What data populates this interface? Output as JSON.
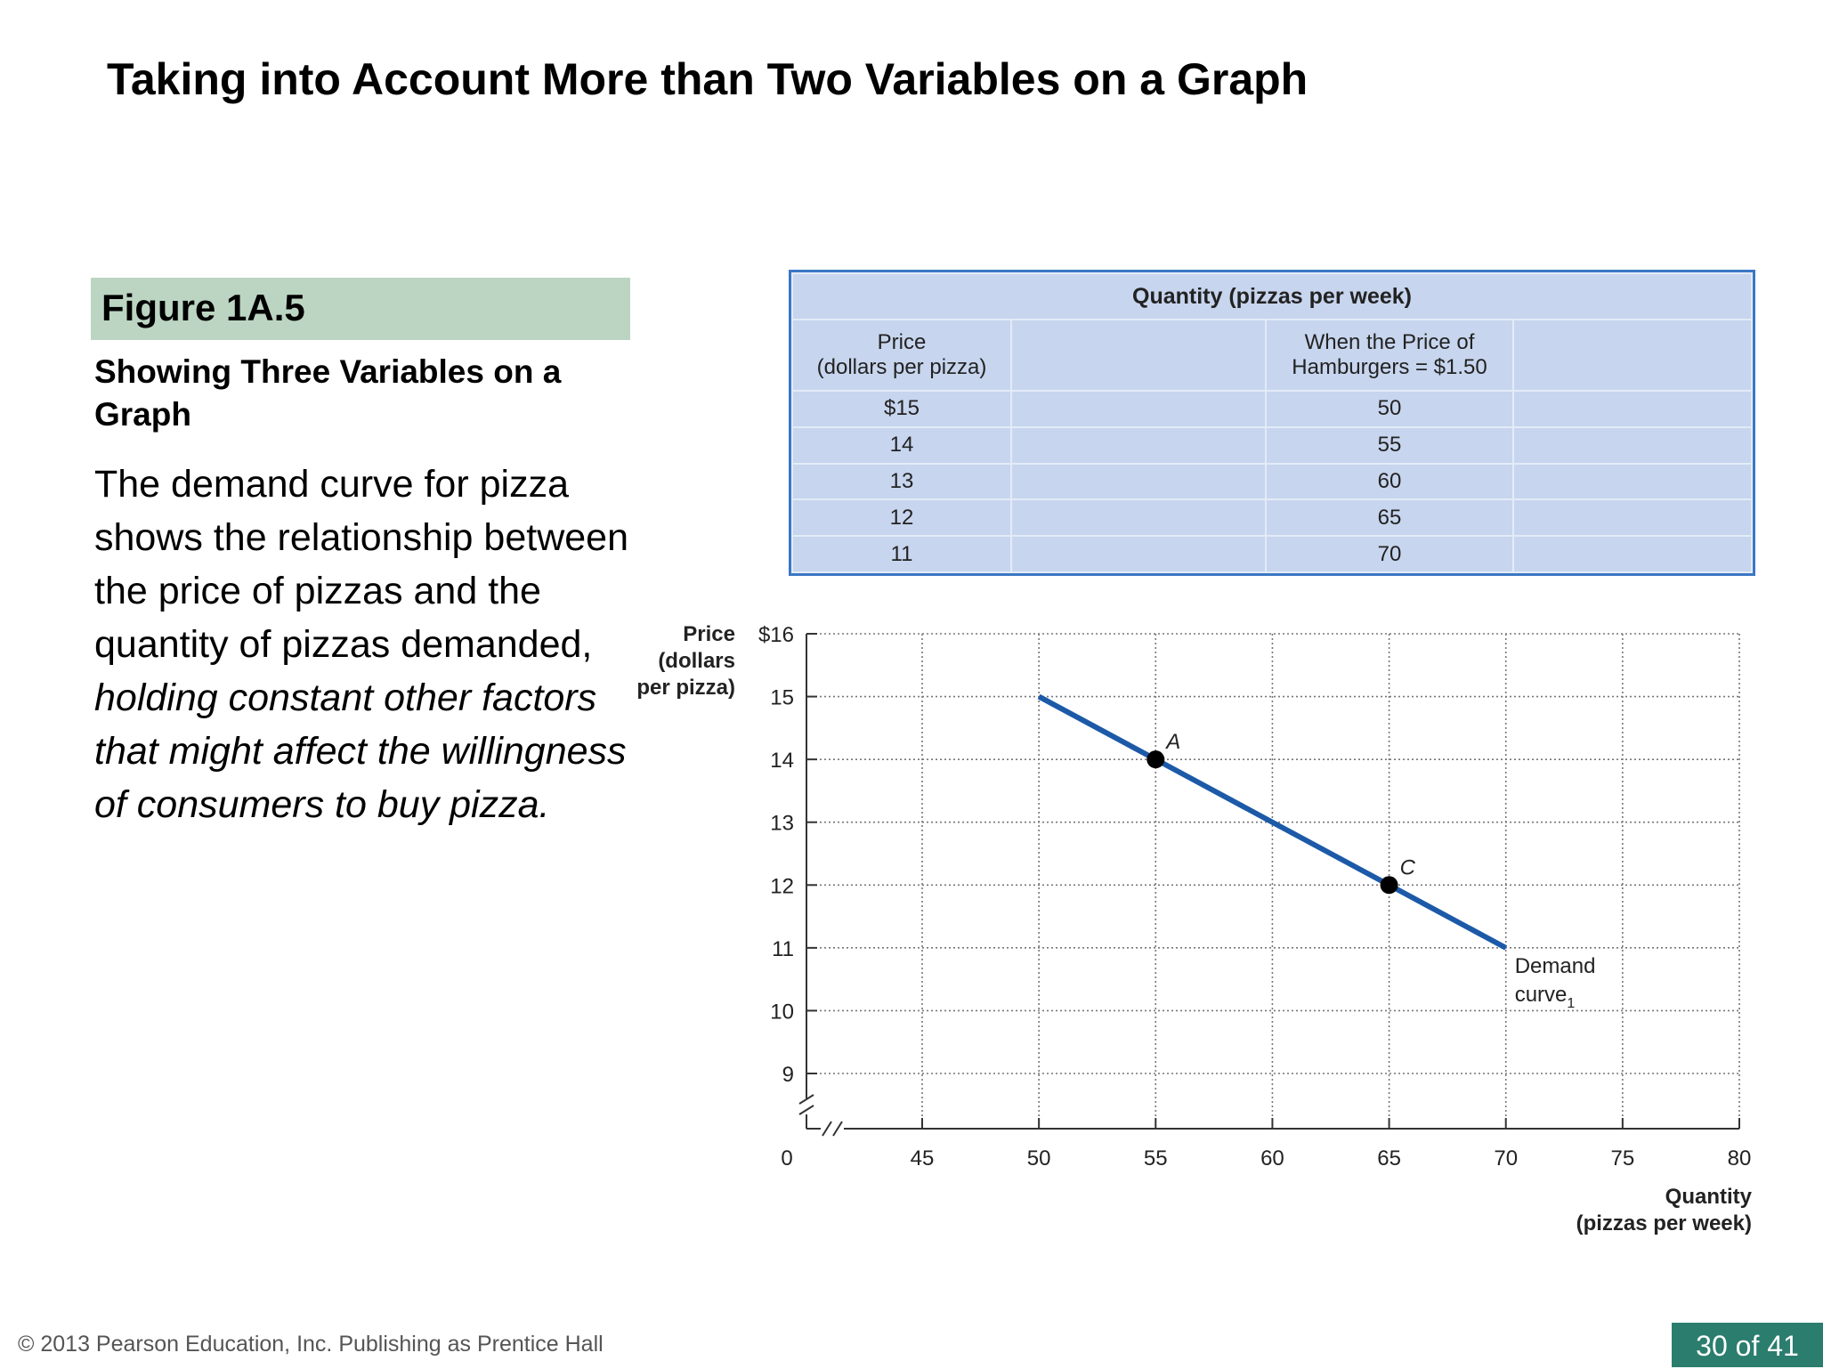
{
  "slide": {
    "title": "Taking into Account More than Two Variables on a Graph",
    "figure_label": "Figure 1A.5",
    "figure_subtitle": "Showing Three Variables on a Graph",
    "body_text_normal": "The demand curve for pizza shows the relationship between the price of pizzas and the quantity of pizzas demanded, ",
    "body_text_italic": "holding constant other factors that might affect the willingness of consumers to buy pizza.",
    "footer_copyright": "© 2013 Pearson Education, Inc. Publishing as Prentice Hall",
    "page_indicator": "30 of 41"
  },
  "table": {
    "group_header": "Quantity (pizzas per week)",
    "col_price_line1": "Price",
    "col_price_line2": "(dollars per pizza)",
    "col_qty_line1": "When the Price of",
    "col_qty_line2": "Hamburgers = $1.50",
    "rows": [
      {
        "price": "$15",
        "qty": "50"
      },
      {
        "price": "14",
        "qty": "55"
      },
      {
        "price": "13",
        "qty": "60"
      },
      {
        "price": "12",
        "qty": "65"
      },
      {
        "price": "11",
        "qty": "70"
      }
    ]
  },
  "chart_data": {
    "type": "line",
    "ylabel": [
      "Price",
      "(dollars",
      "per pizza)"
    ],
    "xlabel": [
      "Quantity",
      "(pizzas per week)"
    ],
    "y_ticks": [
      "9",
      "10",
      "11",
      "12",
      "13",
      "14",
      "15",
      "$16"
    ],
    "y_tick_values": [
      9,
      10,
      11,
      12,
      13,
      14,
      15,
      16
    ],
    "x_ticks": [
      "45",
      "50",
      "55",
      "60",
      "65",
      "70",
      "75",
      "80"
    ],
    "x_tick_values": [
      45,
      50,
      55,
      60,
      65,
      70,
      75,
      80
    ],
    "origin_label": "0",
    "ylim": [
      9,
      16
    ],
    "xlim": [
      45,
      80
    ],
    "axis_breaks": true,
    "grid": "dotted",
    "series": [
      {
        "name": "Demand curve",
        "subscript": "1",
        "color": "#1c5aa8",
        "x": [
          50,
          55,
          60,
          65,
          70
        ],
        "y": [
          15,
          14,
          13,
          12,
          11
        ]
      }
    ],
    "points": [
      {
        "label": "A",
        "x": 55,
        "y": 14
      },
      {
        "label": "C",
        "x": 65,
        "y": 12
      }
    ]
  }
}
